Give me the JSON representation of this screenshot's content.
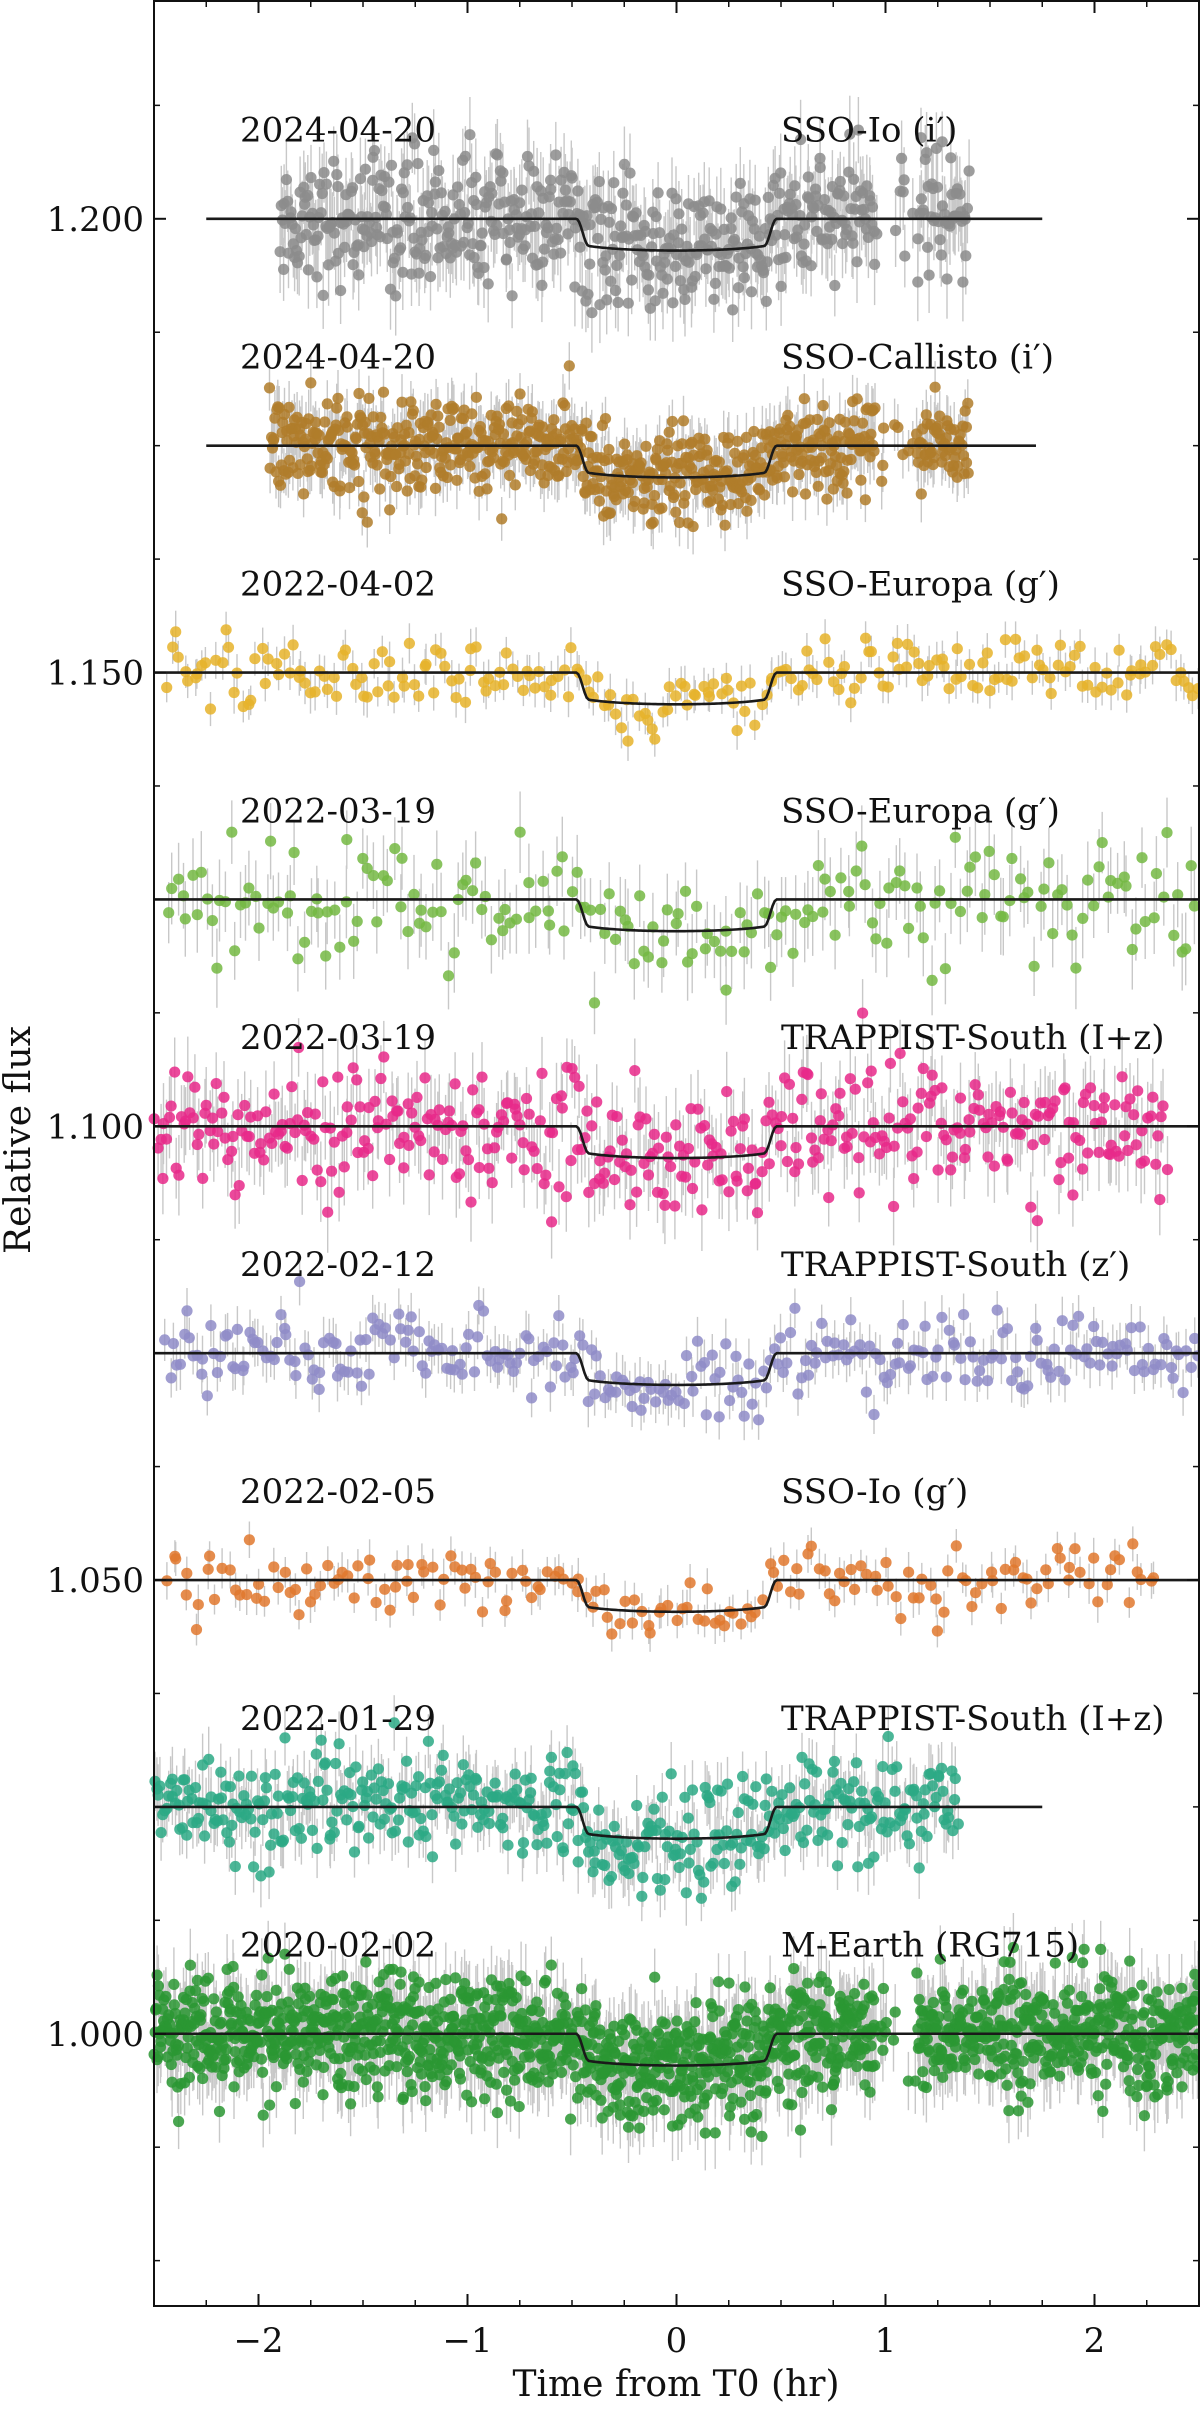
{
  "chart_data": {
    "type": "scatter",
    "title": "",
    "xlabel": "Time from T0 (hr)",
    "ylabel": "Relative flux",
    "xlim": [
      -2.5,
      2.5
    ],
    "ylim": [
      0.97,
      1.224
    ],
    "xticks": [
      -2,
      -1,
      0,
      1,
      2
    ],
    "xtick_labels": [
      "−2",
      "−1",
      "0",
      "1",
      "2"
    ],
    "yticks": [
      1.0,
      1.05,
      1.1,
      1.15,
      1.2
    ],
    "ytick_labels": [
      "1.000",
      "1.050",
      "1.100",
      "1.150",
      "1.200"
    ],
    "grid": false,
    "transit": {
      "t0": 0.0,
      "half_duration_hr": 0.48,
      "ingress_hr": 0.06,
      "depth": 0.0035
    },
    "series": [
      {
        "name": "2024-04-20 SSO-Io (i′)",
        "date": "2024-04-20",
        "instrument": "SSO-Io",
        "filter": "(i′)",
        "offset": 1.2,
        "color": "#8c8c8c",
        "x_range": [
          -1.9,
          1.4
        ],
        "model_range": [
          -2.25,
          1.75
        ],
        "n_points": 620,
        "scatter": 0.0035
      },
      {
        "name": "2024-04-20 SSO-Callisto (i′)",
        "date": "2024-04-20",
        "instrument": "SSO-Callisto",
        "filter": "(i′)",
        "offset": 1.175,
        "color": "#b07d2a",
        "x_range": [
          -1.95,
          1.4
        ],
        "model_range": [
          -2.25,
          1.72
        ],
        "n_points": 780,
        "scatter": 0.0025
      },
      {
        "name": "2022-04-02 SSO-Europa (g′)",
        "date": "2022-04-02",
        "instrument": "SSO-Europa",
        "filter": "(g′)",
        "offset": 1.15,
        "color": "#e6b32a",
        "x_range": [
          -2.45,
          2.5
        ],
        "model_range": [
          -2.5,
          2.5
        ],
        "n_points": 230,
        "scatter": 0.0018
      },
      {
        "name": "2022-03-19 SSO-Europa (g′)",
        "date": "2022-03-19",
        "instrument": "SSO-Europa",
        "filter": "(g′)",
        "offset": 1.125,
        "color": "#74b843",
        "x_range": [
          -2.45,
          2.5
        ],
        "model_range": [
          -2.5,
          2.5
        ],
        "n_points": 210,
        "scatter": 0.0035
      },
      {
        "name": "2022-03-19 TRAPPIST-South (I+z)",
        "date": "2022-03-19",
        "instrument": "TRAPPIST-South",
        "filter": "(I+z)",
        "offset": 1.1,
        "color": "#e7298a",
        "x_range": [
          -2.5,
          2.35
        ],
        "model_range": [
          -2.5,
          2.5
        ],
        "n_points": 430,
        "scatter": 0.0035
      },
      {
        "name": "2022-02-12 TRAPPIST-South (z′)",
        "date": "2022-02-12",
        "instrument": "TRAPPIST-South",
        "filter": "(z′)",
        "offset": 1.075,
        "color": "#8f8cc8",
        "x_range": [
          -2.45,
          2.5
        ],
        "model_range": [
          -2.5,
          2.5
        ],
        "n_points": 300,
        "scatter": 0.0022
      },
      {
        "name": "2022-02-05 SSO-Io (g′)",
        "date": "2022-02-05",
        "instrument": "SSO-Io",
        "filter": "(g′)",
        "offset": 1.05,
        "color": "#e0782e",
        "x_range": [
          -2.45,
          2.3
        ],
        "model_range": [
          -2.5,
          2.5
        ],
        "n_points": 180,
        "scatter": 0.0018
      },
      {
        "name": "2022-01-29 TRAPPIST-South (I+z)",
        "date": "2022-01-29",
        "instrument": "TRAPPIST-South",
        "filter": "(I+z)",
        "offset": 1.025,
        "color": "#2ca985",
        "x_range": [
          -2.5,
          1.35
        ],
        "model_range": [
          -2.5,
          1.75
        ],
        "n_points": 480,
        "scatter": 0.0028
      },
      {
        "name": "2020-02-02 M-Earth (RG715)",
        "date": "2020-02-02",
        "instrument": "M-Earth",
        "filter": "(RG715)",
        "offset": 1.0,
        "color": "#2a9632",
        "x_range": [
          -2.5,
          2.5
        ],
        "model_range": [
          -2.5,
          2.5
        ],
        "n_points": 1700,
        "scatter": 0.0032
      }
    ]
  }
}
